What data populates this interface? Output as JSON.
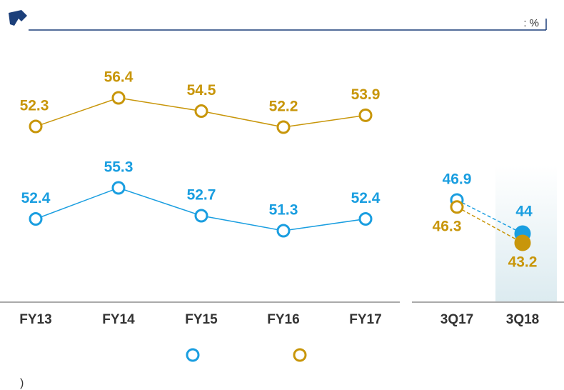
{
  "unit": ": %",
  "footnote": ")",
  "chart_data": [
    {
      "type": "line",
      "categories": [
        "FY13",
        "FY14",
        "FY15",
        "FY16",
        "FY17"
      ],
      "series": [
        {
          "color": "#1a9ee0",
          "values": [
            52.4,
            55.3,
            52.7,
            51.3,
            52.4
          ]
        },
        {
          "color": "#c8960a",
          "values": [
            52.3,
            56.4,
            54.5,
            52.2,
            53.9
          ]
        }
      ]
    },
    {
      "type": "dashed-line",
      "categories": [
        "3Q17",
        "3Q18"
      ],
      "series": [
        {
          "color": "#1a9ee0",
          "values": [
            46.9,
            44.0
          ]
        },
        {
          "color": "#c8960a",
          "values": [
            46.3,
            43.2
          ]
        }
      ]
    }
  ]
}
